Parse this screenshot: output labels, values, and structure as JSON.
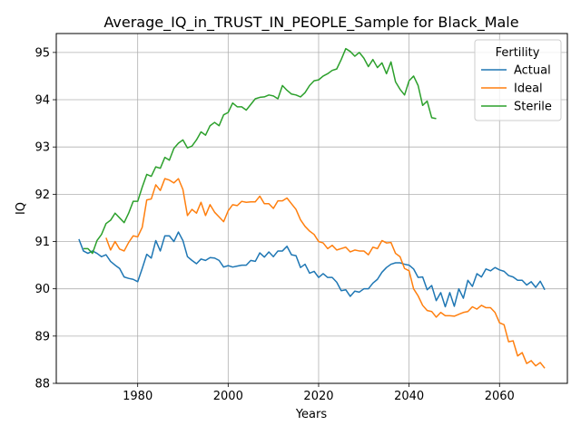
{
  "chart_data": {
    "type": "line",
    "title": "Average_IQ_in_TRUST_IN_PEOPLE_Sample for Black_Male",
    "xlabel": "Years",
    "ylabel": "IQ",
    "xlim": [
      1962,
      2075
    ],
    "ylim": [
      88.0,
      95.4
    ],
    "x_ticks": [
      1980,
      2000,
      2020,
      2040,
      2060
    ],
    "y_ticks": [
      88,
      89,
      90,
      91,
      92,
      93,
      94,
      95
    ],
    "grid": true,
    "legend": {
      "title": "Fertility",
      "placement": "top-right"
    },
    "series": [
      {
        "name": "Actual",
        "color": "#1f77b4",
        "x": [
          1967,
          1968,
          1969,
          1970,
          1971,
          1972,
          1973,
          1974,
          1975,
          1976,
          1977,
          1978,
          1979,
          1980,
          1981,
          1982,
          1983,
          1984,
          1985,
          1986,
          1987,
          1988,
          1989,
          1990,
          1991,
          1992,
          1993,
          1994,
          1995,
          1996,
          1997,
          1998,
          1999,
          2000,
          2001,
          2002,
          2003,
          2004,
          2005,
          2006,
          2007,
          2008,
          2009,
          2010,
          2011,
          2012,
          2013,
          2014,
          2015,
          2016,
          2017,
          2018,
          2019,
          2020,
          2021,
          2022,
          2023,
          2024,
          2025,
          2026,
          2027,
          2028,
          2029,
          2030,
          2031,
          2032,
          2033,
          2034,
          2035,
          2036,
          2037,
          2038,
          2039,
          2040,
          2041,
          2042,
          2043,
          2044,
          2045,
          2046,
          2047,
          2048,
          2049,
          2050,
          2051,
          2052,
          2053,
          2054,
          2055,
          2056,
          2057,
          2058,
          2059,
          2060,
          2061,
          2062,
          2063,
          2064,
          2065,
          2066,
          2067,
          2068,
          2069,
          2070
        ],
        "values": [
          91.05,
          90.8,
          90.75,
          90.8,
          90.75,
          90.68,
          90.72,
          90.58,
          90.5,
          90.43,
          90.25,
          90.22,
          90.2,
          90.15,
          90.43,
          90.73,
          90.65,
          91.02,
          90.8,
          91.12,
          91.12,
          91.0,
          91.2,
          91.02,
          90.68,
          90.6,
          90.53,
          90.63,
          90.6,
          90.66,
          90.65,
          90.6,
          90.46,
          90.49,
          90.46,
          90.48,
          90.5,
          90.5,
          90.6,
          90.58,
          90.76,
          90.67,
          90.78,
          90.68,
          90.8,
          90.8,
          90.9,
          90.72,
          90.7,
          90.45,
          90.52,
          90.33,
          90.37,
          90.24,
          90.32,
          90.24,
          90.24,
          90.14,
          89.96,
          89.98,
          89.84,
          89.95,
          89.93,
          90.0,
          90.0,
          90.12,
          90.2,
          90.35,
          90.45,
          90.52,
          90.55,
          90.55,
          90.52,
          90.5,
          90.42,
          90.24,
          90.25,
          89.98,
          90.07,
          89.75,
          89.92,
          89.62,
          89.92,
          89.63,
          90.0,
          89.8,
          90.18,
          90.05,
          90.32,
          90.25,
          90.42,
          90.38,
          90.45,
          90.4,
          90.37,
          90.28,
          90.25,
          90.18,
          90.18,
          90.08,
          90.15,
          90.03,
          90.16,
          89.98
        ]
      },
      {
        "name": "Ideal",
        "color": "#ff7f0e",
        "x": [
          1973,
          1974,
          1975,
          1976,
          1977,
          1978,
          1979,
          1980,
          1981,
          1982,
          1983,
          1984,
          1985,
          1986,
          1987,
          1988,
          1989,
          1990,
          1991,
          1992,
          1993,
          1994,
          1995,
          1996,
          1997,
          1998,
          1999,
          2000,
          2001,
          2002,
          2003,
          2004,
          2005,
          2006,
          2007,
          2008,
          2009,
          2010,
          2011,
          2012,
          2013,
          2014,
          2015,
          2016,
          2017,
          2018,
          2019,
          2020,
          2021,
          2022,
          2023,
          2024,
          2025,
          2026,
          2027,
          2028,
          2029,
          2030,
          2031,
          2032,
          2033,
          2034,
          2035,
          2036,
          2037,
          2038,
          2039,
          2040,
          2041,
          2042,
          2043,
          2044,
          2045,
          2046,
          2047,
          2048,
          2049,
          2050,
          2051,
          2052,
          2053,
          2054,
          2055,
          2056,
          2057,
          2058,
          2059,
          2060,
          2061,
          2062,
          2063,
          2064,
          2065,
          2066,
          2067,
          2068,
          2069,
          2070
        ],
        "values": [
          91.08,
          90.82,
          91.0,
          90.84,
          90.8,
          90.98,
          91.12,
          91.1,
          91.3,
          91.88,
          91.9,
          92.2,
          92.08,
          92.33,
          92.3,
          92.24,
          92.33,
          92.1,
          91.55,
          91.68,
          91.6,
          91.83,
          91.55,
          91.78,
          91.62,
          91.52,
          91.42,
          91.65,
          91.78,
          91.76,
          91.85,
          91.83,
          91.84,
          91.84,
          91.96,
          91.8,
          91.8,
          91.7,
          91.86,
          91.86,
          91.92,
          91.8,
          91.68,
          91.46,
          91.32,
          91.22,
          91.15,
          91.0,
          90.97,
          90.85,
          90.92,
          90.82,
          90.85,
          90.88,
          90.78,
          90.82,
          90.8,
          90.8,
          90.72,
          90.88,
          90.85,
          91.02,
          90.97,
          90.98,
          90.75,
          90.68,
          90.43,
          90.38,
          90.0,
          89.85,
          89.65,
          89.54,
          89.52,
          89.4,
          89.5,
          89.43,
          89.43,
          89.42,
          89.46,
          89.5,
          89.52,
          89.62,
          89.57,
          89.65,
          89.6,
          89.6,
          89.5,
          89.28,
          89.24,
          88.88,
          88.9,
          88.58,
          88.65,
          88.42,
          88.48,
          88.37,
          88.44,
          88.32
        ]
      },
      {
        "name": "Sterile",
        "color": "#2ca02c",
        "x": [
          1968,
          1969,
          1970,
          1971,
          1972,
          1973,
          1974,
          1975,
          1976,
          1977,
          1978,
          1979,
          1980,
          1981,
          1982,
          1983,
          1984,
          1985,
          1986,
          1987,
          1988,
          1989,
          1990,
          1991,
          1992,
          1993,
          1994,
          1995,
          1996,
          1997,
          1998,
          1999,
          2000,
          2001,
          2002,
          2003,
          2004,
          2005,
          2006,
          2007,
          2008,
          2009,
          2010,
          2011,
          2012,
          2013,
          2014,
          2015,
          2016,
          2017,
          2018,
          2019,
          2020,
          2021,
          2022,
          2023,
          2024,
          2025,
          2026,
          2027,
          2028,
          2029,
          2030,
          2031,
          2032,
          2033,
          2034,
          2035,
          2036,
          2037,
          2038,
          2039,
          2040,
          2041,
          2042,
          2043,
          2044,
          2045,
          2046
        ],
        "values": [
          90.85,
          90.85,
          90.75,
          91.02,
          91.15,
          91.38,
          91.45,
          91.6,
          91.5,
          91.4,
          91.6,
          91.85,
          91.85,
          92.15,
          92.42,
          92.38,
          92.58,
          92.55,
          92.78,
          92.72,
          92.97,
          93.08,
          93.15,
          92.98,
          93.02,
          93.15,
          93.32,
          93.25,
          93.45,
          93.52,
          93.45,
          93.68,
          93.73,
          93.93,
          93.85,
          93.85,
          93.78,
          93.9,
          94.02,
          94.05,
          94.06,
          94.1,
          94.08,
          94.02,
          94.3,
          94.2,
          94.12,
          94.1,
          94.06,
          94.15,
          94.3,
          94.4,
          94.42,
          94.5,
          94.55,
          94.62,
          94.65,
          94.85,
          95.08,
          95.02,
          94.92,
          95.0,
          94.88,
          94.7,
          94.85,
          94.68,
          94.78,
          94.55,
          94.8,
          94.38,
          94.22,
          94.1,
          94.4,
          94.5,
          94.3,
          93.88,
          93.97,
          93.62,
          93.6
        ]
      }
    ]
  }
}
